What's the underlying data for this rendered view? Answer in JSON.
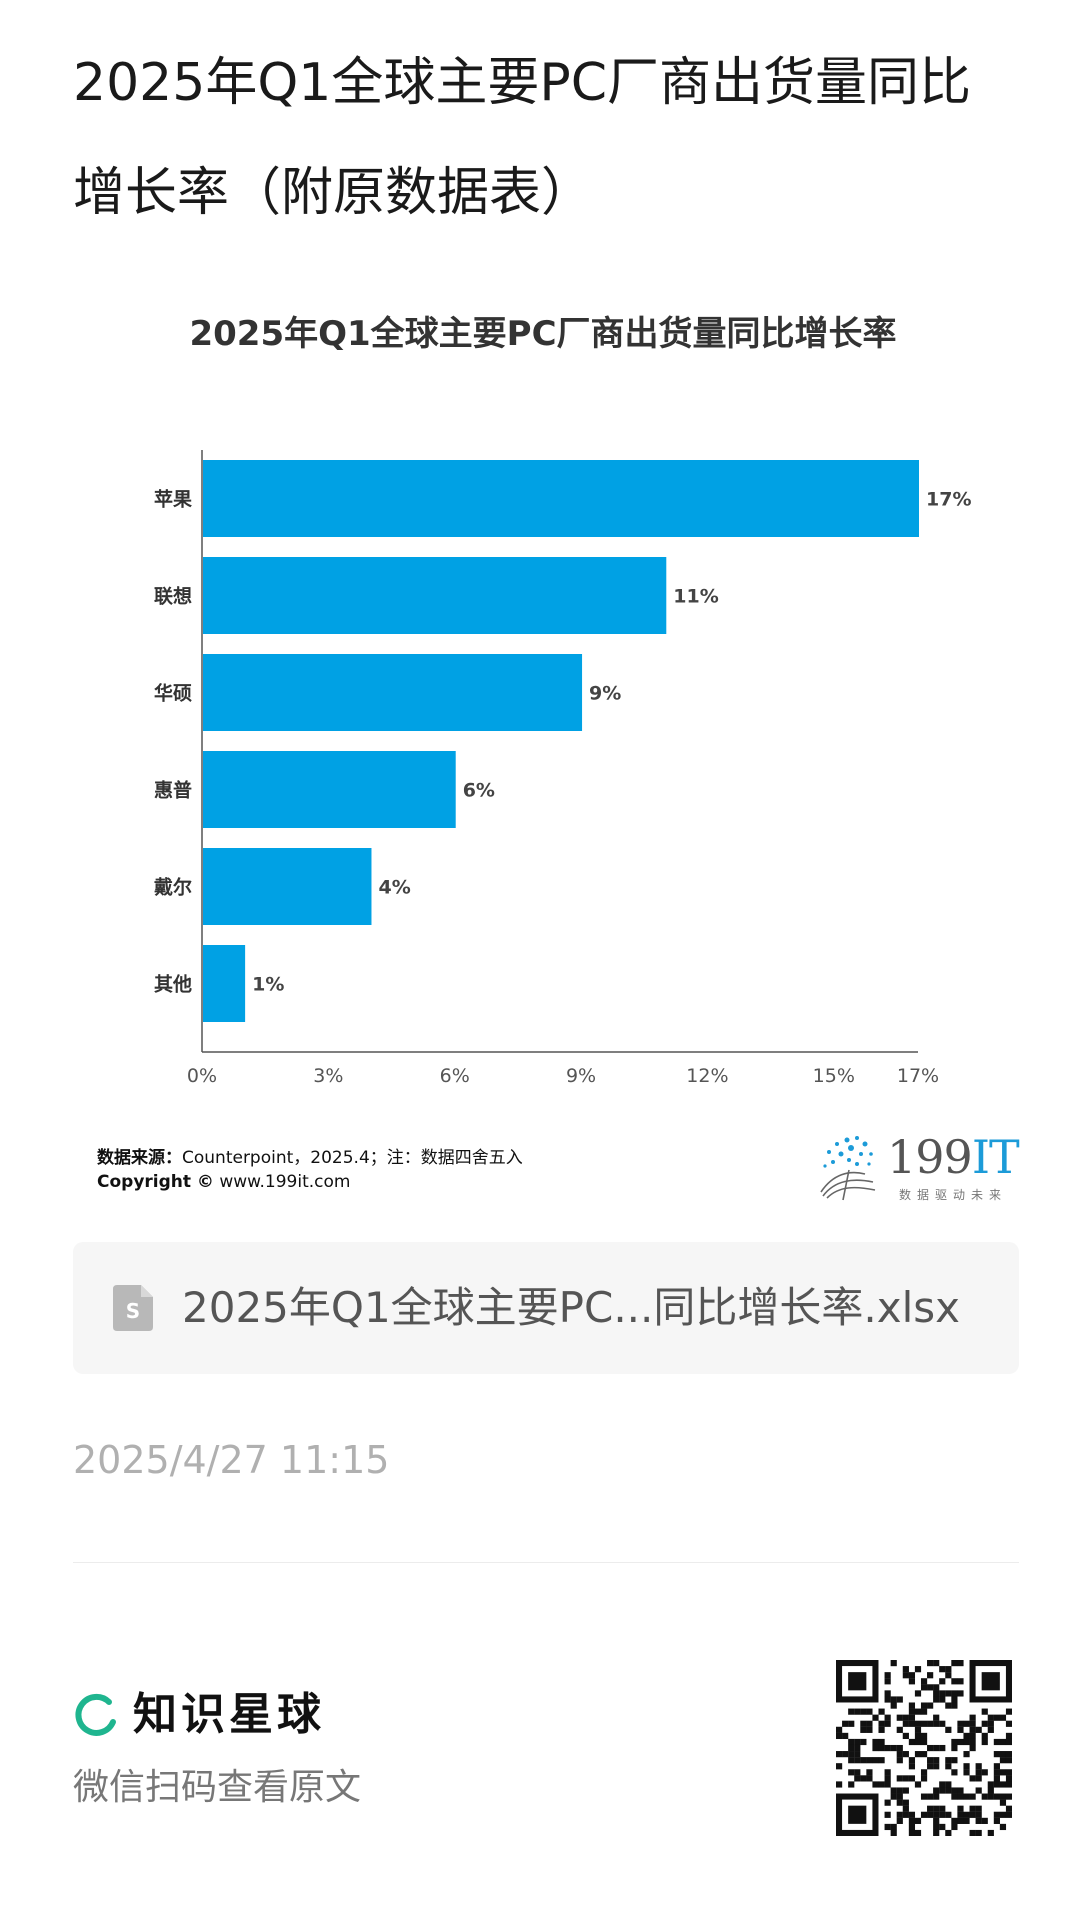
{
  "article": {
    "title": "2025年Q1全球主要PC厂商出货量同比增长率（附原数据表）",
    "timestamp": "2025/4/27 11:15"
  },
  "chart_data": {
    "type": "bar",
    "orientation": "horizontal",
    "title": "2025年Q1全球主要PC厂商出货量同比增长率",
    "categories": [
      "苹果",
      "联想",
      "华硕",
      "惠普",
      "戴尔",
      "其他"
    ],
    "values": [
      17,
      11,
      9,
      6,
      4,
      1
    ],
    "data_labels": [
      "17%",
      "11%",
      "9%",
      "6%",
      "4%",
      "1%"
    ],
    "x_ticks": [
      "0%",
      "3%",
      "6%",
      "9%",
      "12%",
      "15%",
      "17%"
    ],
    "x_tick_values": [
      0,
      3,
      6,
      9,
      12,
      15,
      17
    ],
    "xlim": [
      0,
      17
    ],
    "grid": false,
    "bar_color": "#00a1e4",
    "source_label": "数据来源：",
    "source_text": "Counterpoint，2025.4；注：数据四舍五入",
    "copyright_label": "Copyright ©",
    "copyright_text": "www.199it.com"
  },
  "logo": {
    "text": "199",
    "text_accent": "IT",
    "subtitle": "数据驱动未来"
  },
  "attachment": {
    "icon": "spreadsheet-file-icon",
    "file_name": "2025年Q1全球主要PC...同比增长率.xlsx"
  },
  "footer": {
    "brand_icon": "zsxq-ring-icon",
    "brand_name": "知识星球",
    "scan_text": "微信扫码查看原文",
    "qr_icon": "qr-code-icon"
  },
  "colors": {
    "bar": "#00a1e4",
    "brand_green": "#1fb58f",
    "logo_blue": "#1c9bd8"
  }
}
